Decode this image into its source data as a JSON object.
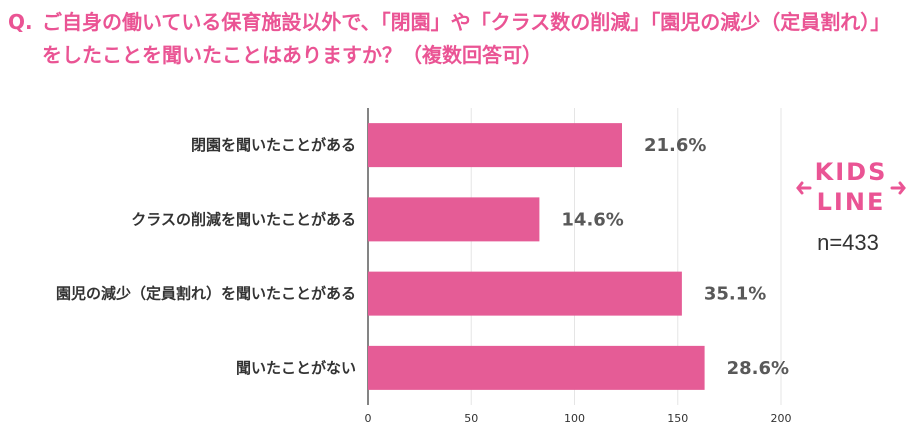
{
  "question": {
    "mark": "Q.",
    "text": "ご自身の働いている保育施設以外で、「閉園」や「クラス数の削減」「園児の減少（定員割れ）」をしたことを聞いたことはありますか？（複数回答可）"
  },
  "brand": {
    "logo_line1": "KIDS",
    "logo_line2": "LINE",
    "color": "#ea5494"
  },
  "sample_size": "n=433",
  "chart_data": {
    "type": "bar",
    "orientation": "horizontal",
    "title": "",
    "xlabel": "",
    "ylabel": "",
    "categories": [
      "閉園を聞いたことがある",
      "クラスの削減を聞いたことがある",
      "園児の減少（定員割れ）を聞いたことがある",
      "聞いたことがない"
    ],
    "values": [
      123,
      83,
      152,
      163
    ],
    "value_labels": [
      "21.6%",
      "14.6%",
      "35.1%",
      "28.6%"
    ],
    "xlim": [
      0,
      200
    ],
    "xticks": [
      0,
      50,
      100,
      150,
      200
    ],
    "grid": true,
    "bar_color": "#e55c96"
  }
}
